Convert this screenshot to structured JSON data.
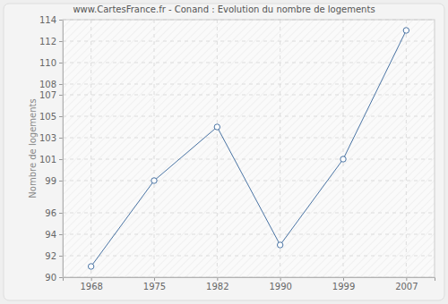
{
  "chart_data": {
    "type": "line",
    "title": "www.CartesFrance.fr - Conand : Evolution du nombre de logements",
    "y_label": "Nombre de logements",
    "categories": [
      "1968",
      "1975",
      "1982",
      "1990",
      "1999",
      "2007"
    ],
    "values": [
      91,
      99,
      104,
      93,
      101,
      113
    ],
    "color": "#4a74a4",
    "marker": "circle",
    "ylim": [
      90,
      114
    ],
    "yticks": [
      90,
      92,
      94,
      96,
      99,
      101,
      103,
      105,
      107,
      108,
      110,
      112,
      114
    ],
    "grid": true
  }
}
